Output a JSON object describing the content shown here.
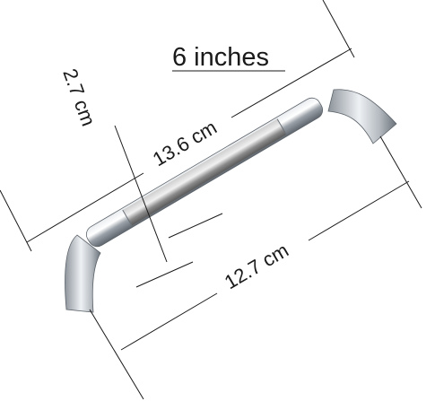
{
  "title": "6 inches",
  "dimensions": {
    "height": "2.7 cm",
    "total_length": "13.6 cm",
    "hole_spacing": "12.7 cm"
  },
  "colors": {
    "chrome_light": "#f4f6f8",
    "chrome_mid": "#b9bfc6",
    "chrome_dark": "#6e757d",
    "brushed": "#9a9a9a",
    "line": "#1a1a1a"
  }
}
